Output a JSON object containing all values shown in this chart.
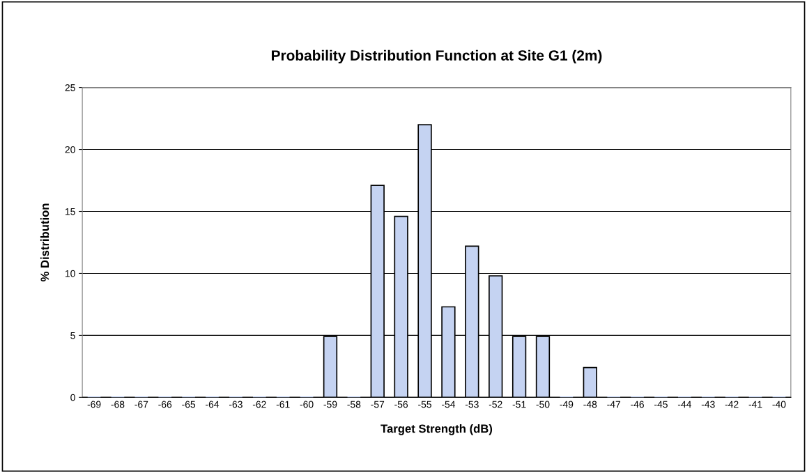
{
  "chart_data": {
    "type": "bar",
    "title": "Probability Distribution Function at Site G1 (2m)",
    "xlabel": "Target Strength (dB)",
    "ylabel": "% Distribution",
    "categories": [
      "-69",
      "-68",
      "-67",
      "-66",
      "-65",
      "-64",
      "-63",
      "-62",
      "-61",
      "-60",
      "-59",
      "-58",
      "-57",
      "-56",
      "-55",
      "-54",
      "-53",
      "-52",
      "-51",
      "-50",
      "-49",
      "-48",
      "-47",
      "-46",
      "-45",
      "-44",
      "-43",
      "-42",
      "-41",
      "-40"
    ],
    "values": [
      0,
      0,
      0,
      0,
      0,
      0,
      0,
      0,
      0,
      0,
      4.9,
      0,
      17.1,
      14.6,
      22.0,
      7.3,
      12.2,
      9.8,
      4.9,
      4.9,
      0,
      2.4,
      0,
      0,
      0,
      0,
      0,
      0,
      0,
      0
    ],
    "color": "#c5d3f2",
    "ylim": [
      0,
      25
    ],
    "yticks": [
      0,
      5,
      10,
      15,
      20,
      25
    ],
    "grid": "y",
    "legend": false
  }
}
